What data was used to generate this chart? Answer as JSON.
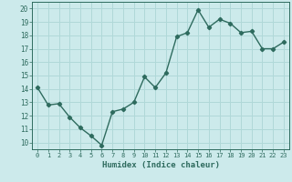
{
  "x": [
    0,
    1,
    2,
    3,
    4,
    5,
    6,
    7,
    8,
    9,
    10,
    11,
    12,
    13,
    14,
    15,
    16,
    17,
    18,
    19,
    20,
    21,
    22,
    23
  ],
  "y": [
    14.1,
    12.8,
    12.9,
    11.9,
    11.1,
    10.5,
    9.8,
    12.3,
    12.5,
    13.0,
    14.9,
    14.1,
    15.2,
    17.9,
    18.2,
    19.9,
    18.6,
    19.2,
    18.9,
    18.2,
    18.3,
    17.0,
    17.0,
    17.5
  ],
  "xlabel": "Humidex (Indice chaleur)",
  "ylabel": "",
  "xlim": [
    -0.5,
    23.5
  ],
  "ylim": [
    9.5,
    20.5
  ],
  "yticks": [
    10,
    11,
    12,
    13,
    14,
    15,
    16,
    17,
    18,
    19,
    20
  ],
  "xticks": [
    0,
    1,
    2,
    3,
    4,
    5,
    6,
    7,
    8,
    9,
    10,
    11,
    12,
    13,
    14,
    15,
    16,
    17,
    18,
    19,
    20,
    21,
    22,
    23
  ],
  "line_color": "#2e6b5e",
  "marker": "D",
  "marker_size": 2.2,
  "bg_color": "#cceaeb",
  "grid_color": "#b0d8d8",
  "tick_label_color": "#2e6b5e",
  "xlabel_color": "#2e6b5e",
  "line_width": 1.0
}
